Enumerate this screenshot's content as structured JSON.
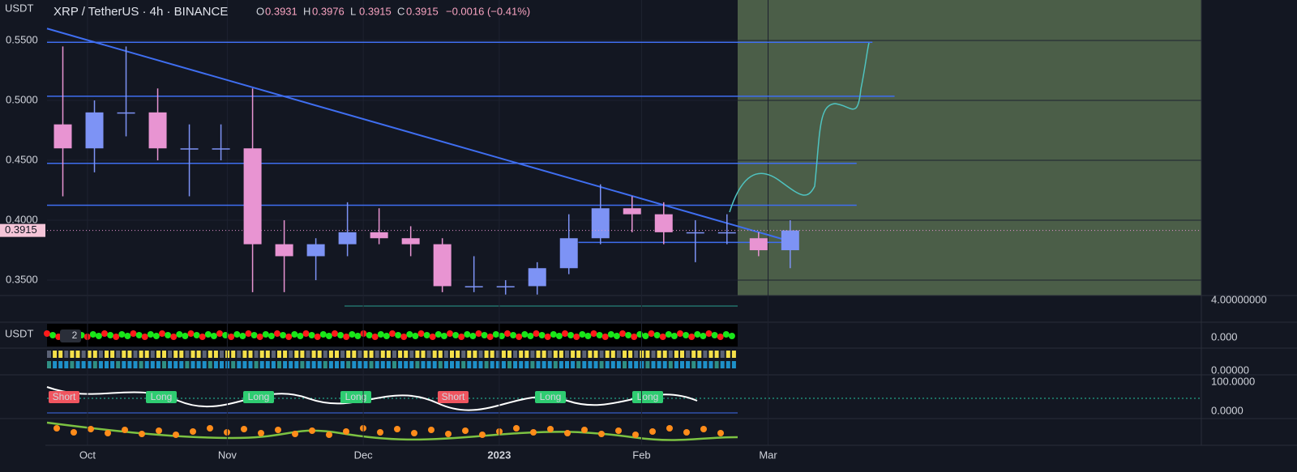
{
  "header": {
    "symbol": "XRP / TetherUS · 4h · BINANCE",
    "ohlc": [
      {
        "label": "O",
        "value": "0.3931"
      },
      {
        "label": "H",
        "value": "0.3976"
      },
      {
        "label": "L",
        "value": "0.3915"
      },
      {
        "label": "C",
        "value": "0.3915"
      }
    ],
    "change": "−0.0016 (−0.41%)"
  },
  "chart_data": {
    "type": "candlestick",
    "axis_unit": "USDT",
    "categories": [
      null,
      null,
      null,
      null,
      null,
      null,
      null,
      null,
      null,
      null,
      null,
      null,
      null,
      null,
      null,
      null,
      null,
      null,
      null,
      null,
      null,
      null,
      null,
      null
    ],
    "open": [
      0.48,
      0.46,
      0.49,
      0.49,
      0.46,
      0.46,
      0.46,
      0.38,
      0.37,
      0.38,
      0.39,
      0.385,
      0.38,
      0.345,
      0.345,
      0.345,
      0.36,
      0.385,
      0.41,
      0.405,
      0.39,
      0.39,
      0.385,
      0.375
    ],
    "high": [
      0.545,
      0.5,
      0.545,
      0.51,
      0.48,
      0.48,
      0.51,
      0.4,
      0.385,
      0.415,
      0.41,
      0.395,
      0.385,
      0.37,
      0.35,
      0.365,
      0.405,
      0.43,
      0.42,
      0.415,
      0.4,
      0.405,
      0.39,
      0.4
    ],
    "low": [
      0.42,
      0.44,
      0.47,
      0.45,
      0.42,
      0.45,
      0.34,
      0.34,
      0.35,
      0.37,
      0.38,
      0.37,
      0.34,
      0.34,
      0.338,
      0.338,
      0.355,
      0.38,
      0.39,
      0.38,
      0.365,
      0.38,
      0.37,
      0.36
    ],
    "close": [
      0.46,
      0.49,
      0.49,
      0.46,
      0.46,
      0.46,
      0.38,
      0.37,
      0.38,
      0.39,
      0.385,
      0.38,
      0.345,
      0.345,
      0.345,
      0.36,
      0.385,
      0.41,
      0.405,
      0.39,
      0.39,
      0.39,
      0.375,
      0.3915
    ],
    "up_color": "#7d93f5",
    "down_color": "#e894d2",
    "ylim": [
      0.3372,
      0.5838
    ],
    "yticks": [
      {
        "value": 0.35,
        "label": "0.3500"
      },
      {
        "value": 0.4,
        "label": "0.4000"
      },
      {
        "value": 0.45,
        "label": "0.4500"
      },
      {
        "value": 0.5,
        "label": "0.5000"
      },
      {
        "value": 0.55,
        "label": "0.5500"
      }
    ],
    "xlim": [
      0,
      36.5
    ],
    "xticks": [
      {
        "value": 1.28,
        "label": "Oct"
      },
      {
        "value": 5.7,
        "label": "Nov"
      },
      {
        "value": 10,
        "label": "Dec"
      },
      {
        "value": 14.3,
        "label": "2023"
      },
      {
        "value": 18.8,
        "label": "Feb"
      },
      {
        "value": 22.8,
        "label": "Mar"
      }
    ],
    "last_price": {
      "value": 0.3915,
      "label": "0.3915"
    },
    "level_color": "#3f6ef0",
    "levels": [
      {
        "value": 0.5485,
        "from": 0,
        "to": 26.1
      },
      {
        "value": 0.5035,
        "from": 0,
        "to": 26.8
      },
      {
        "value": 0.4475,
        "from": 0,
        "to": 25.6
      },
      {
        "value": 0.4125,
        "from": 0,
        "to": 25.6
      },
      {
        "value": 0.3815,
        "from": 16.8,
        "to": 23.3
      }
    ],
    "trendline": {
      "from": [
        0,
        0.56
      ],
      "to": [
        23.3,
        0.384
      ]
    }
  },
  "panes": [
    {
      "labels": [
        "4.00000000"
      ]
    },
    {
      "labels": [
        "USDT",
        "0.000"
      ]
    },
    {
      "labels": [
        "0.00000"
      ]
    },
    {
      "labels": [
        "100.0000",
        "0.0000"
      ]
    }
  ],
  "signals": [
    "Short",
    "Long",
    "Long",
    "Long",
    "Short",
    "Long",
    "Long"
  ],
  "collapsed_count": "2"
}
